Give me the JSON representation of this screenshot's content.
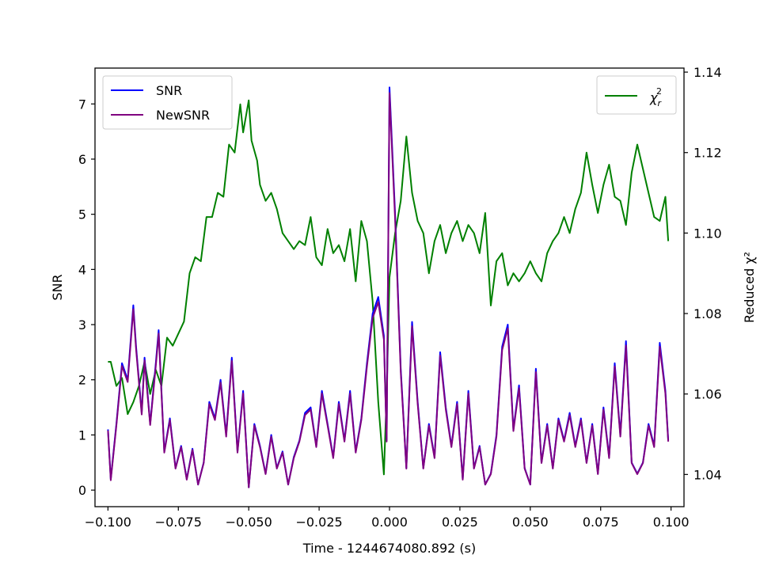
{
  "chart_data": {
    "type": "line",
    "xlabel": "Time - 1244674080.892 (s)",
    "ylabel_left": "SNR",
    "ylabel_right": "Reduced χ²",
    "xlim": [
      -0.1046,
      0.1046
    ],
    "ylim_left": [
      -0.3,
      7.65
    ],
    "ylim_right": [
      1.032,
      1.141
    ],
    "x_ticks": [
      -0.1,
      -0.075,
      -0.05,
      -0.025,
      0.0,
      0.025,
      0.05,
      0.075,
      0.1
    ],
    "x_tick_labels": [
      "−0.100",
      "−0.075",
      "−0.050",
      "−0.025",
      "0.000",
      "0.025",
      "0.050",
      "0.075",
      "0.100"
    ],
    "y_left_ticks": [
      0,
      1,
      2,
      3,
      4,
      5,
      6,
      7
    ],
    "y_left_tick_labels": [
      "0",
      "1",
      "2",
      "3",
      "4",
      "5",
      "6",
      "7"
    ],
    "y_right_ticks": [
      1.04,
      1.06,
      1.08,
      1.1,
      1.12,
      1.14
    ],
    "y_right_tick_labels": [
      "1.04",
      "1.06",
      "1.08",
      "1.10",
      "1.12",
      "1.14"
    ],
    "grid": false,
    "legend_left": {
      "placement": "upper-left",
      "entries": [
        {
          "name": "SNR",
          "color": "#0000ff"
        },
        {
          "name": "NewSNR",
          "color": "#800080"
        }
      ]
    },
    "legend_right": {
      "placement": "upper-right",
      "entries": [
        {
          "name": "χ",
          "sub": "r",
          "sup": "2",
          "color": "#008000"
        }
      ]
    },
    "series": [
      {
        "name": "SNR",
        "axis": "left",
        "color": "#0000ff",
        "x": [
          -0.1,
          -0.099,
          -0.097,
          -0.095,
          -0.093,
          -0.091,
          -0.09,
          -0.088,
          -0.087,
          -0.085,
          -0.083,
          -0.082,
          -0.08,
          -0.078,
          -0.076,
          -0.074,
          -0.072,
          -0.07,
          -0.068,
          -0.066,
          -0.064,
          -0.062,
          -0.06,
          -0.058,
          -0.056,
          -0.054,
          -0.052,
          -0.05,
          -0.048,
          -0.046,
          -0.044,
          -0.042,
          -0.04,
          -0.038,
          -0.036,
          -0.034,
          -0.032,
          -0.03,
          -0.028,
          -0.026,
          -0.024,
          -0.022,
          -0.02,
          -0.018,
          -0.016,
          -0.014,
          -0.012,
          -0.01,
          -0.008,
          -0.006,
          -0.004,
          -0.002,
          -0.001,
          0.0,
          0.002,
          0.004,
          0.006,
          0.008,
          0.01,
          0.012,
          0.014,
          0.016,
          0.018,
          0.02,
          0.022,
          0.024,
          0.026,
          0.028,
          0.03,
          0.032,
          0.034,
          0.036,
          0.038,
          0.04,
          0.042,
          0.044,
          0.046,
          0.048,
          0.05,
          0.052,
          0.054,
          0.056,
          0.058,
          0.06,
          0.062,
          0.064,
          0.066,
          0.068,
          0.07,
          0.072,
          0.074,
          0.076,
          0.078,
          0.08,
          0.082,
          0.084,
          0.086,
          0.088,
          0.09,
          0.092,
          0.094,
          0.096,
          0.098,
          0.099
        ],
        "values": [
          1.1,
          0.2,
          1.2,
          2.3,
          2.0,
          3.35,
          2.6,
          1.4,
          2.4,
          1.2,
          2.3,
          2.9,
          0.7,
          1.3,
          0.4,
          0.8,
          0.2,
          0.75,
          0.1,
          0.5,
          1.6,
          1.3,
          2.0,
          1.0,
          2.4,
          0.7,
          1.8,
          0.05,
          1.2,
          0.8,
          0.3,
          1.0,
          0.4,
          0.7,
          0.1,
          0.6,
          0.9,
          1.4,
          1.5,
          0.8,
          1.8,
          1.2,
          0.6,
          1.6,
          0.9,
          1.8,
          0.7,
          1.3,
          2.3,
          3.2,
          3.5,
          2.8,
          0.9,
          7.3,
          5.0,
          2.2,
          0.4,
          3.05,
          1.6,
          0.4,
          1.2,
          0.6,
          2.5,
          1.5,
          0.8,
          1.6,
          0.2,
          1.8,
          0.4,
          0.8,
          0.1,
          0.3,
          1.0,
          2.6,
          3.0,
          1.1,
          1.9,
          0.4,
          0.1,
          2.2,
          0.5,
          1.2,
          0.4,
          1.3,
          0.9,
          1.4,
          0.8,
          1.3,
          0.5,
          1.2,
          0.3,
          1.5,
          0.6,
          2.3,
          1.0,
          2.7,
          0.5,
          0.3,
          0.5,
          1.2,
          0.8,
          2.67,
          1.8,
          0.9
        ]
      },
      {
        "name": "NewSNR",
        "axis": "left",
        "color": "#800080",
        "x": [
          -0.1,
          -0.099,
          -0.097,
          -0.095,
          -0.093,
          -0.091,
          -0.09,
          -0.088,
          -0.087,
          -0.085,
          -0.083,
          -0.082,
          -0.08,
          -0.078,
          -0.076,
          -0.074,
          -0.072,
          -0.07,
          -0.068,
          -0.066,
          -0.064,
          -0.062,
          -0.06,
          -0.058,
          -0.056,
          -0.054,
          -0.052,
          -0.05,
          -0.048,
          -0.046,
          -0.044,
          -0.042,
          -0.04,
          -0.038,
          -0.036,
          -0.034,
          -0.032,
          -0.03,
          -0.028,
          -0.026,
          -0.024,
          -0.022,
          -0.02,
          -0.018,
          -0.016,
          -0.014,
          -0.012,
          -0.01,
          -0.008,
          -0.006,
          -0.004,
          -0.002,
          -0.001,
          0.0,
          0.002,
          0.004,
          0.006,
          0.008,
          0.01,
          0.012,
          0.014,
          0.016,
          0.018,
          0.02,
          0.022,
          0.024,
          0.026,
          0.028,
          0.03,
          0.032,
          0.034,
          0.036,
          0.038,
          0.04,
          0.042,
          0.044,
          0.046,
          0.048,
          0.05,
          0.052,
          0.054,
          0.056,
          0.058,
          0.06,
          0.062,
          0.064,
          0.066,
          0.068,
          0.07,
          0.072,
          0.074,
          0.076,
          0.078,
          0.08,
          0.082,
          0.084,
          0.086,
          0.088,
          0.09,
          0.092,
          0.094,
          0.096,
          0.098,
          0.099
        ],
        "values": [
          1.08,
          0.18,
          1.17,
          2.25,
          1.96,
          3.28,
          2.55,
          1.37,
          2.35,
          1.18,
          2.25,
          2.84,
          0.68,
          1.27,
          0.39,
          0.78,
          0.19,
          0.73,
          0.1,
          0.49,
          1.56,
          1.27,
          1.95,
          0.97,
          2.34,
          0.68,
          1.75,
          0.05,
          1.17,
          0.78,
          0.29,
          0.97,
          0.39,
          0.68,
          0.1,
          0.58,
          0.88,
          1.36,
          1.46,
          0.78,
          1.75,
          1.17,
          0.58,
          1.56,
          0.88,
          1.75,
          0.68,
          1.27,
          2.24,
          3.12,
          3.41,
          2.73,
          0.88,
          7.2,
          4.9,
          2.14,
          0.39,
          2.97,
          1.56,
          0.39,
          1.17,
          0.58,
          2.44,
          1.46,
          0.78,
          1.56,
          0.19,
          1.75,
          0.39,
          0.78,
          0.1,
          0.29,
          0.97,
          2.54,
          2.93,
          1.07,
          1.85,
          0.39,
          0.1,
          2.14,
          0.49,
          1.17,
          0.39,
          1.27,
          0.88,
          1.36,
          0.78,
          1.27,
          0.49,
          1.17,
          0.29,
          1.46,
          0.58,
          2.24,
          0.97,
          2.62,
          0.49,
          0.29,
          0.49,
          1.17,
          0.78,
          2.6,
          1.75,
          0.88
        ]
      },
      {
        "name": "χ²r",
        "axis": "right",
        "color": "#008000",
        "x": [
          -0.1,
          -0.099,
          -0.097,
          -0.095,
          -0.093,
          -0.091,
          -0.089,
          -0.087,
          -0.085,
          -0.083,
          -0.081,
          -0.079,
          -0.077,
          -0.075,
          -0.073,
          -0.071,
          -0.069,
          -0.067,
          -0.065,
          -0.063,
          -0.061,
          -0.059,
          -0.057,
          -0.055,
          -0.053,
          -0.052,
          -0.05,
          -0.049,
          -0.047,
          -0.046,
          -0.044,
          -0.042,
          -0.04,
          -0.038,
          -0.036,
          -0.034,
          -0.032,
          -0.03,
          -0.028,
          -0.026,
          -0.024,
          -0.022,
          -0.02,
          -0.018,
          -0.016,
          -0.014,
          -0.012,
          -0.01,
          -0.008,
          -0.006,
          -0.004,
          -0.002,
          -0.001,
          0.0,
          0.002,
          0.004,
          0.006,
          0.008,
          0.01,
          0.012,
          0.014,
          0.016,
          0.018,
          0.02,
          0.022,
          0.024,
          0.026,
          0.028,
          0.03,
          0.032,
          0.034,
          0.036,
          0.038,
          0.04,
          0.042,
          0.044,
          0.046,
          0.048,
          0.05,
          0.052,
          0.054,
          0.056,
          0.058,
          0.06,
          0.062,
          0.064,
          0.066,
          0.068,
          0.07,
          0.072,
          0.074,
          0.076,
          0.078,
          0.08,
          0.082,
          0.084,
          0.086,
          0.088,
          0.09,
          0.092,
          0.094,
          0.096,
          0.098,
          0.099
        ],
        "values": [
          1.068,
          1.068,
          1.062,
          1.064,
          1.055,
          1.058,
          1.062,
          1.068,
          1.06,
          1.066,
          1.062,
          1.074,
          1.072,
          1.075,
          1.078,
          1.09,
          1.094,
          1.093,
          1.104,
          1.104,
          1.11,
          1.109,
          1.122,
          1.12,
          1.132,
          1.125,
          1.133,
          1.123,
          1.118,
          1.112,
          1.108,
          1.11,
          1.106,
          1.1,
          1.098,
          1.096,
          1.098,
          1.097,
          1.104,
          1.094,
          1.092,
          1.101,
          1.095,
          1.097,
          1.093,
          1.101,
          1.088,
          1.103,
          1.098,
          1.083,
          1.058,
          1.04,
          1.06,
          1.089,
          1.1,
          1.108,
          1.124,
          1.11,
          1.103,
          1.1,
          1.09,
          1.098,
          1.102,
          1.095,
          1.1,
          1.103,
          1.098,
          1.102,
          1.1,
          1.095,
          1.105,
          1.082,
          1.093,
          1.095,
          1.087,
          1.09,
          1.088,
          1.09,
          1.093,
          1.09,
          1.088,
          1.095,
          1.098,
          1.1,
          1.104,
          1.1,
          1.106,
          1.11,
          1.12,
          1.112,
          1.105,
          1.112,
          1.117,
          1.109,
          1.108,
          1.102,
          1.115,
          1.122,
          1.116,
          1.11,
          1.104,
          1.103,
          1.109,
          1.098
        ]
      }
    ]
  }
}
